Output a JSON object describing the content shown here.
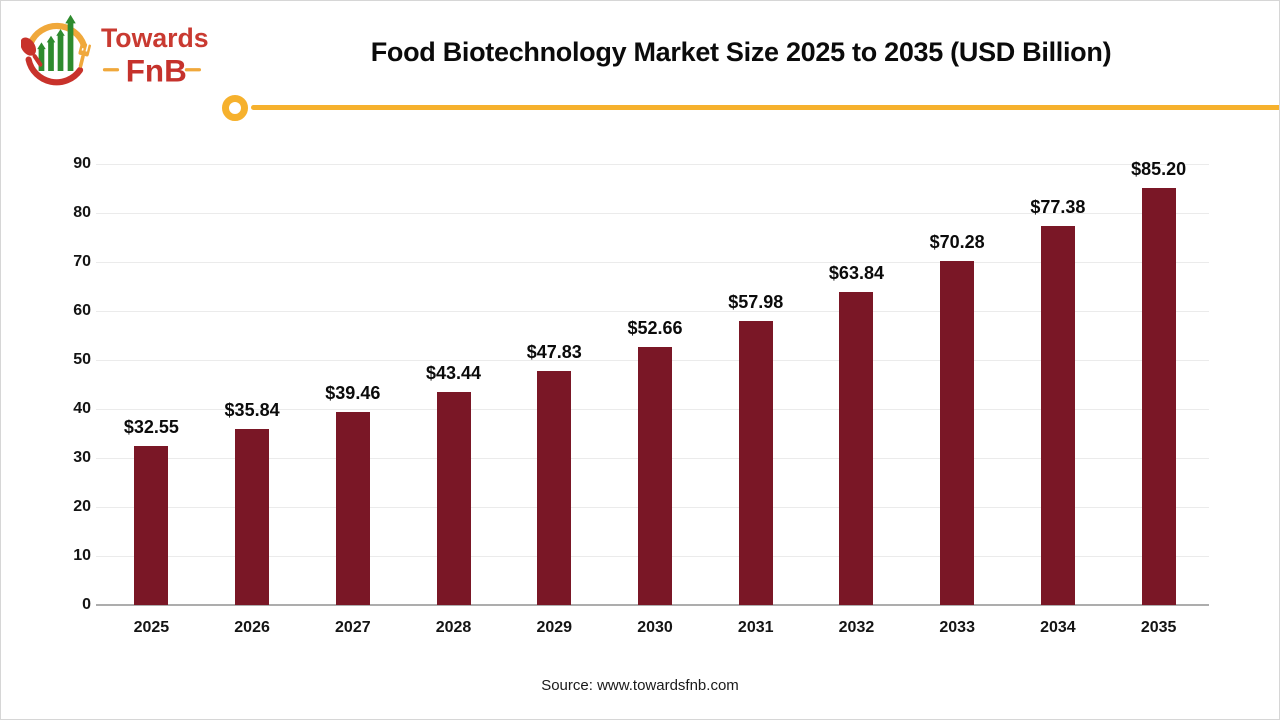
{
  "logo": {
    "brand_top": "Towards",
    "brand_bottom": "FnB"
  },
  "header": {
    "title": "Food Biotechnology Market Size 2025 to 2035 (USD Billion)"
  },
  "chart_data": {
    "type": "bar",
    "title": "Food Biotechnology Market Size 2025 to 2035 (USD Billion)",
    "categories": [
      "2025",
      "2026",
      "2027",
      "2028",
      "2029",
      "2030",
      "2031",
      "2032",
      "2033",
      "2034",
      "2035"
    ],
    "values": [
      32.55,
      35.84,
      39.46,
      43.44,
      47.83,
      52.66,
      57.98,
      63.84,
      70.28,
      77.38,
      85.2
    ],
    "data_labels": [
      "$32.55",
      "$35.84",
      "$39.46",
      "$43.44",
      "$47.83",
      "$52.66",
      "$57.98",
      "$63.84",
      "$70.28",
      "$77.38",
      "$85.20"
    ],
    "xlabel": "",
    "ylabel": "",
    "ylim": [
      0,
      90
    ],
    "ytick_step": 10,
    "yticks": [
      0,
      10,
      20,
      30,
      40,
      50,
      60,
      70,
      80,
      90
    ],
    "grid": true,
    "legend_position": "none",
    "bar_color": "#7a1726"
  },
  "footer": {
    "source": "Source: www.towardsfnb.com"
  },
  "colors": {
    "accent_yellow": "#f6b12d",
    "bar_maroon": "#7a1726",
    "logo_red": "#c93a31",
    "logo_dark_red": "#c5322c",
    "logo_green": "#2e8b2e",
    "logo_yellow": "#f0a83b",
    "gridline": "#ebebeb",
    "axis_line": "#adadad"
  }
}
